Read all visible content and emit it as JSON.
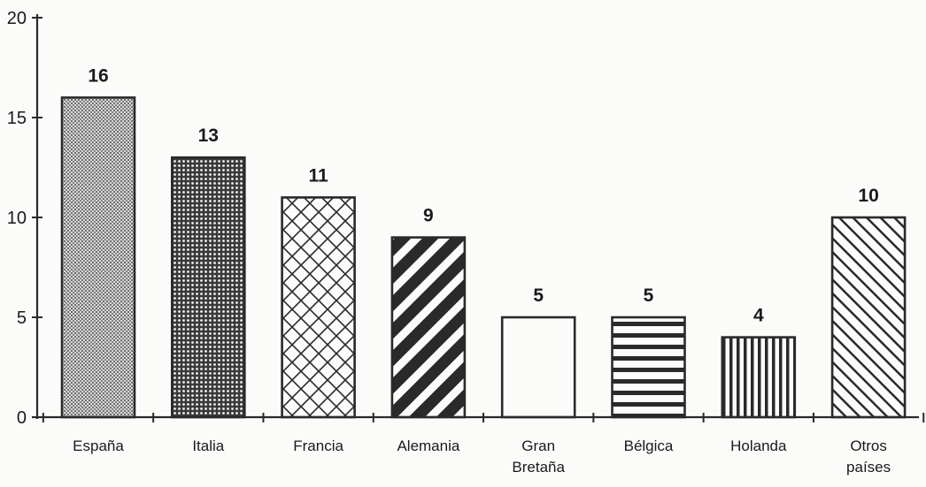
{
  "chart_data": {
    "type": "bar",
    "title": "",
    "xlabel": "",
    "ylabel": "",
    "ylim": [
      0,
      20
    ],
    "yticks": [
      0,
      5,
      10,
      15,
      20
    ],
    "grid": false,
    "categories": [
      [
        "España"
      ],
      [
        "Italia"
      ],
      [
        "Francia"
      ],
      [
        "Alemania"
      ],
      [
        "Gran",
        "Bretaña"
      ],
      [
        "Bélgica"
      ],
      [
        "Holanda"
      ],
      [
        "Otros",
        "países"
      ]
    ],
    "values": [
      16,
      13,
      11,
      9,
      5,
      5,
      4,
      10
    ],
    "fill_patterns": [
      "fine-dots",
      "dots",
      "crosshatch",
      "dark-diagonal-stripes",
      "blank",
      "horizontal-lines",
      "vertical-lines",
      "diagonal-lines"
    ],
    "colors": {
      "ink": "#2a2a2a",
      "paper": "#fbfbf9"
    }
  }
}
